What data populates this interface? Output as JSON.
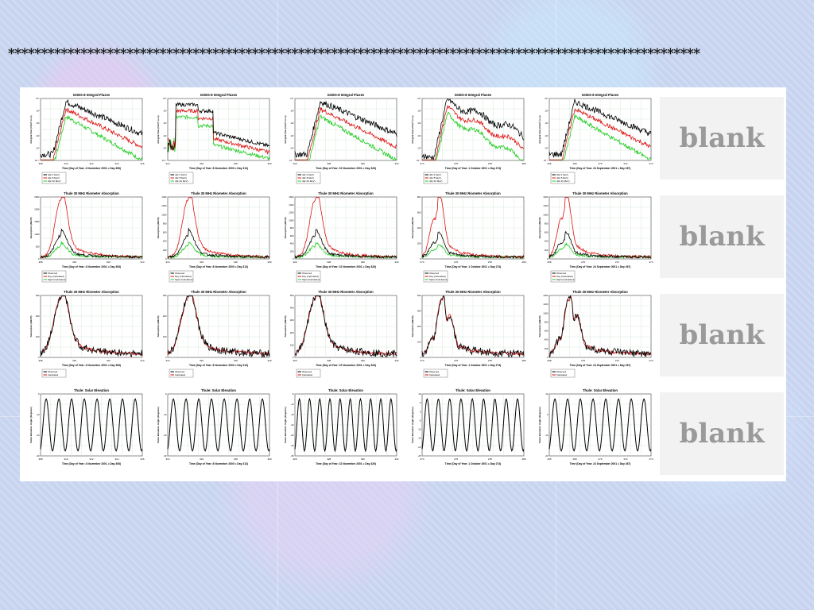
{
  "slide": {
    "title": "*********************************************************************************************************",
    "blank_label": "blank"
  },
  "chart_data": [
    {
      "type": "line",
      "row": 0,
      "col": 0,
      "title": "GOES-8  Integral Fluxes",
      "xlabel": "Time  (Day of Year:  4 November 2001 = Day 308)",
      "ylabel": "Integral Flux  (#/cm²-sr-s)",
      "x_ticks": [
        "308",
        "310",
        "312",
        "314",
        "316"
      ],
      "ylog": true,
      "legend": [
        "J(E>1 MeV)",
        "J(E>5 MeV)",
        "J(E>10 MeV)"
      ],
      "colors": [
        "#000000",
        "#dd1111",
        "#22cc22"
      ],
      "pattern": "flux"
    },
    {
      "type": "line",
      "row": 0,
      "col": 1,
      "title": "GOES-8  Integral Fluxes",
      "xlabel": "Time  (Day of Year:  8 November 2000 = Day 313)",
      "ylabel": "Integral Flux  (#/cm²-sr-s)",
      "x_ticks": [
        "314",
        "316",
        "318",
        "320"
      ],
      "ylog": true,
      "legend": [
        "J(E>1 MeV)",
        "J(E>5 MeV)",
        "J(E>10 MeV)"
      ],
      "colors": [
        "#000000",
        "#dd1111",
        "#22cc22"
      ],
      "pattern": "flux2"
    },
    {
      "type": "line",
      "row": 0,
      "col": 2,
      "title": "GOES-8  Integral Fluxes",
      "xlabel": "Time  (Day of Year:  22 November 2001 = Day 326)",
      "ylabel": "Integral Flux  (#/cm²-sr-s)",
      "x_ticks": [
        "326",
        "328",
        "330",
        "332"
      ],
      "ylog": true,
      "legend": [
        "J(E>1 MeV)",
        "J(E>5 MeV)",
        "J(E>10 MeV)"
      ],
      "colors": [
        "#000000",
        "#dd1111",
        "#22cc22"
      ],
      "pattern": "flux"
    },
    {
      "type": "line",
      "row": 0,
      "col": 3,
      "title": "GOES-8  Integral Fluxes",
      "xlabel": "Time  (Day of Year:  1 October 2001 = Day 274)",
      "ylabel": "Integral Flux  (#/cm²-sr-s)",
      "x_ticks": [
        "274",
        "276",
        "278",
        "280"
      ],
      "ylog": true,
      "legend": [
        "J(E>1 MeV)",
        "J(E>5 MeV)",
        "J(E>10 MeV)"
      ],
      "colors": [
        "#000000",
        "#dd1111",
        "#22cc22"
      ],
      "pattern": "flux3"
    },
    {
      "type": "line",
      "row": 0,
      "col": 4,
      "title": "GOES-8  Integral Fluxes",
      "xlabel": "Time  (Day of Year:  24 September 2001 = Day 267)",
      "ylabel": "Integral Flux  (#/cm²-sr-s)",
      "x_ticks": [
        "266",
        "268",
        "270",
        "272",
        "274"
      ],
      "ylog": true,
      "legend": [
        "J(E>1 MeV)",
        "J(E>5 MeV)",
        "J(E>10 MeV)"
      ],
      "colors": [
        "#000000",
        "#dd1111",
        "#22cc22"
      ],
      "pattern": "flux"
    },
    {
      "type": "line",
      "row": 1,
      "col": 0,
      "title": "Thule 30 MHz Riometer Absorption",
      "xlabel": "Time  (Day of Year:  4 November 2001 = Day 308)",
      "ylabel": "Absorption  (dB/30)",
      "x_ticks": [
        "308",
        "310",
        "312",
        "314"
      ],
      "y_ticks": [
        "0",
        "500",
        "1000",
        "1500",
        "2000",
        "2500"
      ],
      "legend": [
        "Observed",
        "Day  (Calculated)",
        "Night  (Calculated)"
      ],
      "colors": [
        "#000000",
        "#dd1111",
        "#22cc22"
      ],
      "pattern": "riometer"
    },
    {
      "type": "line",
      "row": 1,
      "col": 1,
      "title": "Thule 30 MHz Riometer Absorption",
      "xlabel": "Time  (Day of Year:  8 November 2000 = Day 313)",
      "ylabel": "Absorption  (dB/30)",
      "x_ticks": [
        "314",
        "316",
        "318",
        "320"
      ],
      "y_ticks": [
        "0",
        "200",
        "400",
        "600",
        "800",
        "1000",
        "1200",
        "1400"
      ],
      "legend": [
        "Observed",
        "Day  (Calculated)",
        "Night  (Calculated)"
      ],
      "colors": [
        "#000000",
        "#dd1111",
        "#22cc22"
      ],
      "pattern": "riometer"
    },
    {
      "type": "line",
      "row": 1,
      "col": 2,
      "title": "Thule 30 MHz Riometer Absorption",
      "xlabel": "Time  (Day of Year:  22 November 2001 = Day 326)",
      "ylabel": "Absorption  (dB/30)",
      "x_ticks": [
        "326",
        "328",
        "330",
        "332"
      ],
      "y_ticks": [
        "0",
        "200",
        "400",
        "600",
        "800",
        "1000",
        "1200",
        "1400",
        "1600"
      ],
      "legend": [
        "Observed",
        "Day  (Calculated)",
        "Night  (Calculated)"
      ],
      "colors": [
        "#000000",
        "#dd1111",
        "#22cc22"
      ],
      "pattern": "riometer"
    },
    {
      "type": "line",
      "row": 1,
      "col": 3,
      "title": "Thule 30 MHz Riometer Absorption",
      "xlabel": "Time  (Day of Year:  1 October 2001 = Day 274)",
      "ylabel": "Absorption  (dB/30)",
      "x_ticks": [
        "274",
        "276",
        "278",
        "280"
      ],
      "y_ticks": [
        "0",
        "200",
        "400",
        "600",
        "800"
      ],
      "legend": [
        "Observed",
        "Day  (Calculated)",
        "Night  (Calculated)"
      ],
      "colors": [
        "#000000",
        "#dd1111",
        "#22cc22"
      ],
      "pattern": "riometer2"
    },
    {
      "type": "line",
      "row": 1,
      "col": 4,
      "title": "Thule 30 MHz Riometer Absorption",
      "xlabel": "Time  (Day of Year:  24 September 2001 = Day 267)",
      "ylabel": "Absorption  (dB/30)",
      "x_ticks": [
        "268",
        "270",
        "272",
        "274"
      ],
      "y_ticks": [
        "0",
        "200",
        "400",
        "600",
        "800",
        "1000",
        "1200",
        "1400"
      ],
      "legend": [
        "Observed",
        "Day  (Calculated)",
        "Night  (Calculated)"
      ],
      "colors": [
        "#000000",
        "#dd1111",
        "#22cc22"
      ],
      "pattern": "riometer2"
    },
    {
      "type": "line",
      "row": 2,
      "col": 0,
      "title": "Thule 30 MHz Riometer Absorption",
      "xlabel": "Time  (Day of Year:  4 November 2001 = Day 308)",
      "ylabel": "Absorption  (dB/30)",
      "x_ticks": [
        "308",
        "310",
        "312",
        "314"
      ],
      "y_ticks": [
        "0",
        "100",
        "200",
        "300"
      ],
      "legend": [
        "Observed",
        "Calculated"
      ],
      "colors": [
        "#000000",
        "#dd1111"
      ],
      "pattern": "riometer3"
    },
    {
      "type": "line",
      "row": 2,
      "col": 1,
      "title": "Thule 30 MHz Riometer Absorption",
      "xlabel": "Time  (Day of Year:  8 November 2000 = Day 313)",
      "ylabel": "Absorption  (dB/30)",
      "x_ticks": [
        "314",
        "316",
        "318",
        "320"
      ],
      "y_ticks": [
        "0",
        "100",
        "200",
        "300"
      ],
      "legend": [
        "Observed",
        "Calculated"
      ],
      "colors": [
        "#000000",
        "#dd1111"
      ],
      "pattern": "riometer3"
    },
    {
      "type": "line",
      "row": 2,
      "col": 2,
      "title": "Thule 30 MHz Riometer Absorption",
      "xlabel": "Time  (Day of Year:  22 November 2001 = Day 326)",
      "ylabel": "Absorption  (dB/30)",
      "x_ticks": [
        "326",
        "328",
        "330",
        "332"
      ],
      "y_ticks": [
        "0",
        "100",
        "200",
        "300",
        "400",
        "500"
      ],
      "legend": [
        "Observed",
        "Calculated"
      ],
      "colors": [
        "#000000",
        "#dd1111"
      ],
      "pattern": "riometer3"
    },
    {
      "type": "line",
      "row": 2,
      "col": 3,
      "title": "Thule 30 MHz Riometer Absorption",
      "xlabel": "Time  (Day of Year:  1 October 2001 = Day 274)",
      "ylabel": "Absorption  (dB/30)",
      "x_ticks": [
        "274",
        "276",
        "278",
        "280"
      ],
      "y_ticks": [
        "0",
        "100",
        "200",
        "300",
        "400"
      ],
      "legend": [
        "Observed",
        "Calculated"
      ],
      "colors": [
        "#000000",
        "#dd1111"
      ],
      "pattern": "riometer4"
    },
    {
      "type": "line",
      "row": 2,
      "col": 4,
      "title": "Thule 30 MHz Riometer Absorption",
      "xlabel": "Time  (Day of Year:  24 September 2001 = Day 267)",
      "ylabel": "Absorption  (dB/30)",
      "x_ticks": [
        "268",
        "270",
        "272",
        "274"
      ],
      "y_ticks": [
        "0",
        "200",
        "400",
        "600",
        "800",
        "1000",
        "1200",
        "1400"
      ],
      "legend": [
        "Observed",
        "Calculated"
      ],
      "colors": [
        "#000000",
        "#dd1111"
      ],
      "pattern": "riometer4"
    },
    {
      "type": "line",
      "row": 3,
      "col": 0,
      "title": "Thule:  Solar Elevation",
      "xlabel": "Time  (Day of Year:  4 November 2001 = Day 308)",
      "ylabel": "Solar Elevation Angle  (Degrees)",
      "x_ticks": [
        "308",
        "310",
        "312",
        "314",
        "316"
      ],
      "y_ticks": [
        "-30",
        "-20",
        "-10",
        "0"
      ],
      "legend": [],
      "colors": [
        "#000000"
      ],
      "pattern": "sine",
      "cycles": 8
    },
    {
      "type": "line",
      "row": 3,
      "col": 1,
      "title": "Thule:  Solar Elevation",
      "xlabel": "Time  (Day of Year:  8 November 2000 = Day 313)",
      "ylabel": "Solar Elevation Angle  (Degrees)",
      "x_ticks": [
        "314",
        "316",
        "318",
        "320"
      ],
      "y_ticks": [
        "-30",
        "-20",
        "-10",
        "0"
      ],
      "legend": [],
      "colors": [
        "#000000"
      ],
      "pattern": "sine",
      "cycles": 8
    },
    {
      "type": "line",
      "row": 3,
      "col": 2,
      "title": "Thule:  Solar Elevation",
      "xlabel": "Time  (Day of Year:  22 November 2001 = Day 326)",
      "ylabel": "Solar Elevation Angle  (Degrees)",
      "x_ticks": [
        "326",
        "328",
        "330",
        "332"
      ],
      "y_ticks": [
        "-35",
        "-30",
        "-25",
        "-20",
        "-15",
        "-10",
        "-5"
      ],
      "legend": [],
      "colors": [
        "#000000"
      ],
      "pattern": "sine",
      "cycles": 10
    },
    {
      "type": "line",
      "row": 3,
      "col": 3,
      "title": "Thule:  Solar Elevation",
      "xlabel": "Time  (Day of Year:  1 October 2001 = Day 274)",
      "ylabel": "Solar Elevation Angle  (Degrees)",
      "x_ticks": [
        "274",
        "276",
        "278",
        "280"
      ],
      "y_ticks": [
        "-25",
        "-20",
        "-15",
        "-10",
        "-5",
        "0",
        "5",
        "10"
      ],
      "legend": [],
      "colors": [
        "#000000"
      ],
      "pattern": "sine",
      "cycles": 9
    },
    {
      "type": "line",
      "row": 3,
      "col": 4,
      "title": "Thule:  Solar Elevation",
      "xlabel": "Time  (Day of Year:  24 September 2001 = Day 267)",
      "ylabel": "Solar Elevation Angle  (Degrees)",
      "x_ticks": [
        "266",
        "268",
        "270",
        "272",
        "274"
      ],
      "y_ticks": [
        "-20",
        "-10",
        "0",
        "10"
      ],
      "legend": [],
      "colors": [
        "#000000"
      ],
      "pattern": "sine",
      "cycles": 8
    }
  ]
}
